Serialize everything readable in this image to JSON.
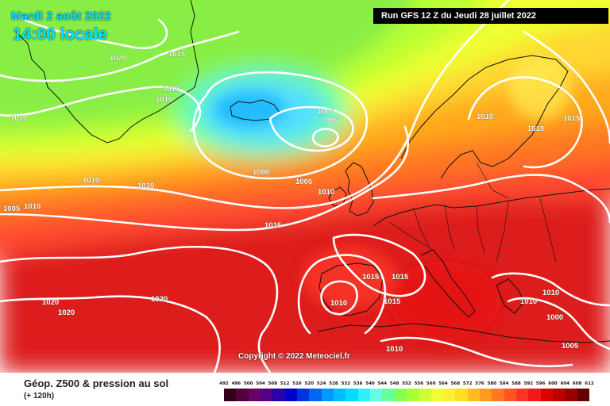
{
  "header": {
    "date": "Mardi 2 août 2022",
    "time": "14:00 locale",
    "run": "Run GFS 12 Z du Jeudi 28 juillet 2022"
  },
  "map": {
    "copyright": "Copyright © 2022 Meteociel.fr",
    "isobar_labels": [
      "1020",
      "1015",
      "1010",
      "1010",
      "1010",
      "1010",
      "1010",
      "1000",
      "995",
      "1000",
      "1005",
      "1010",
      "1005",
      "1010",
      "1015",
      "1010",
      "1010",
      "1015",
      "1015",
      "1015",
      "1010",
      "1020",
      "1020",
      "1020",
      "1015",
      "1010",
      "1010",
      "1000",
      "1005",
      "1010"
    ],
    "colors": {
      "z500_low": "#55ddff",
      "z500_mid": "#88ee44",
      "z500_high": "#ff5030",
      "isobar": "#ffffff"
    }
  },
  "footer": {
    "title": "Géop. Z500 & pression au sol",
    "subtitle": "(+ 120h)"
  },
  "scale": {
    "ticks": [
      "492",
      "496",
      "500",
      "504",
      "508",
      "512",
      "516",
      "520",
      "524",
      "528",
      "532",
      "536",
      "540",
      "544",
      "548",
      "552",
      "556",
      "560",
      "564",
      "568",
      "572",
      "576",
      "580",
      "584",
      "588",
      "592",
      "596",
      "600",
      "604",
      "608",
      "612"
    ],
    "colors": [
      "#33001a",
      "#55003d",
      "#6b0066",
      "#550088",
      "#2a00aa",
      "#0000cc",
      "#0033dd",
      "#0066ee",
      "#0099ff",
      "#00bbff",
      "#00ddff",
      "#33eeff",
      "#66ffdd",
      "#66ff99",
      "#88ff55",
      "#aaff33",
      "#ccff33",
      "#eeff33",
      "#ffee33",
      "#ffdd22",
      "#ffbb22",
      "#ff9922",
      "#ff7722",
      "#ff5522",
      "#ff3322",
      "#ee1a1a",
      "#dd0000",
      "#bb0000",
      "#990000",
      "#660000"
    ]
  }
}
